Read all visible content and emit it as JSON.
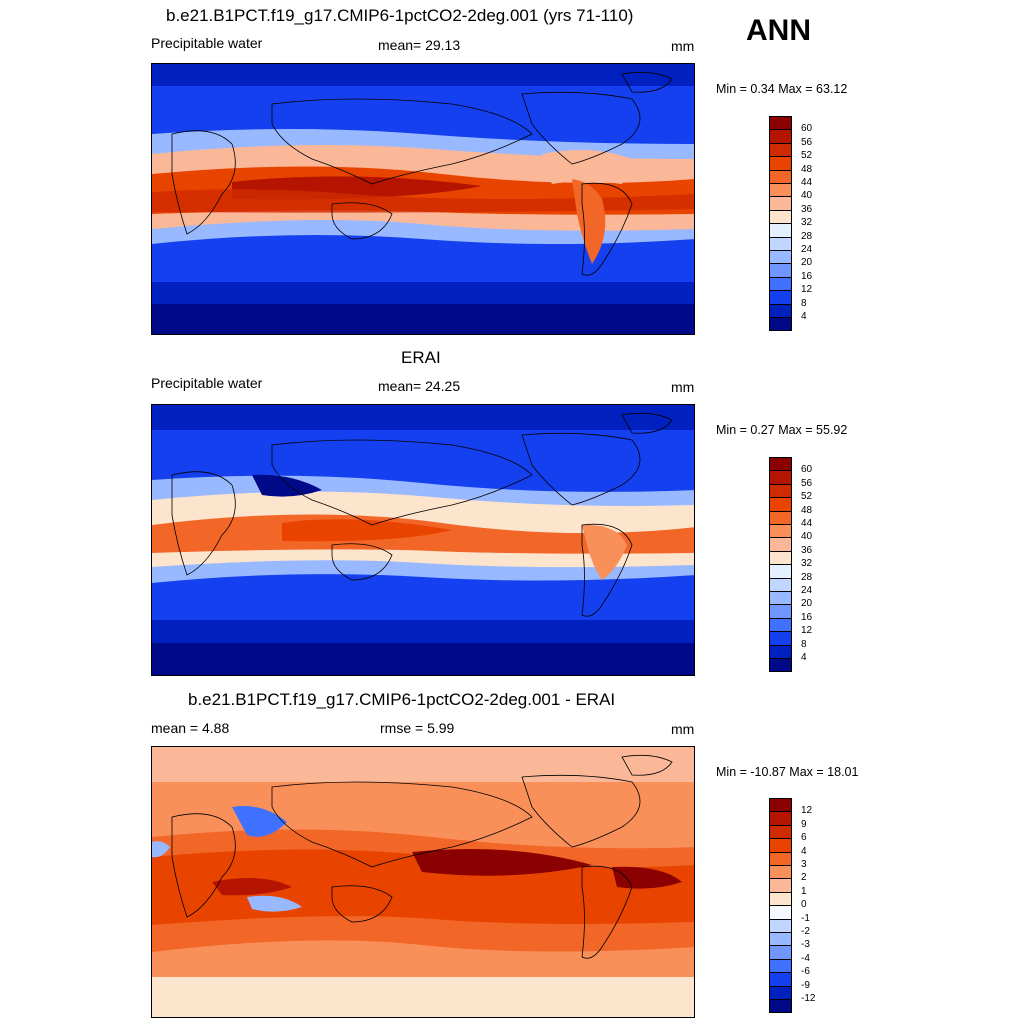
{
  "season": "ANN",
  "panels": [
    {
      "id": "model",
      "title": "b.e21.B1PCT.f19_g17.CMIP6-1pctCO2-2deg.001 (yrs 71-110)",
      "left_label": "Precipitable water",
      "center_label": "mean=  29.13",
      "units": "mm",
      "minmax": "Min =   0.34 Max =  63.12"
    },
    {
      "id": "obs",
      "title": "ERAI",
      "left_label": "Precipitable water",
      "center_label": "mean=  24.25",
      "units": "mm",
      "minmax": "Min =   0.27 Max =  55.92"
    },
    {
      "id": "diff",
      "title": "b.e21.B1PCT.f19_g17.CMIP6-1pctCO2-2deg.001 - ERAI",
      "left_label": "mean =   4.88",
      "center_label": "rmse =   5.99",
      "units": "mm",
      "minmax": "Min = -10.87 Max =  18.01"
    }
  ],
  "colorbars": {
    "field": {
      "labels": [
        "60",
        "56",
        "52",
        "48",
        "44",
        "40",
        "36",
        "32",
        "28",
        "24",
        "20",
        "16",
        "12",
        "8",
        "4"
      ],
      "colors": [
        "#8b0000",
        "#b41400",
        "#d02a00",
        "#e84400",
        "#f26628",
        "#f9905a",
        "#fbb898",
        "#fde4cc",
        "#e4f0ff",
        "#c0d6ff",
        "#98b8ff",
        "#7096ff",
        "#4070ff",
        "#1440f0",
        "#0020c0",
        "#000a88"
      ]
    },
    "diff": {
      "labels": [
        "12",
        "9",
        "6",
        "4",
        "3",
        "2",
        "1",
        "0",
        "-1",
        "-2",
        "-3",
        "-4",
        "-6",
        "-9",
        "-12"
      ],
      "colors": [
        "#8b0000",
        "#b41400",
        "#d02a00",
        "#e84400",
        "#f26628",
        "#f9905a",
        "#fbb898",
        "#fde4cc",
        "#f6f9ff",
        "#c0d6ff",
        "#98b8ff",
        "#7096ff",
        "#4070ff",
        "#1440f0",
        "#0020c0",
        "#000a88"
      ]
    }
  }
}
